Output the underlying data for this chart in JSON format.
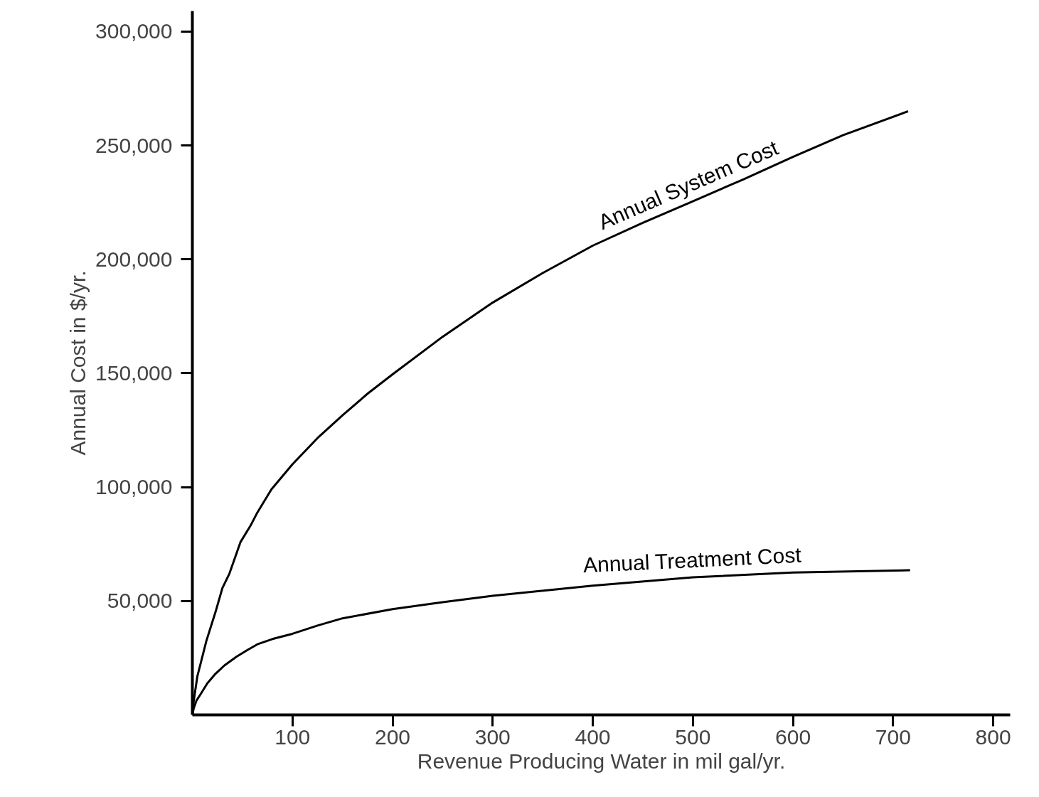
{
  "chart_data": {
    "type": "line",
    "xlabel": "Revenue Producing Water in mil gal/yr.",
    "ylabel": "Annual Cost in $/yr.",
    "xlim": [
      0,
      817
    ],
    "ylim": [
      0,
      309000
    ],
    "xticks": [
      100,
      200,
      300,
      400,
      500,
      600,
      700,
      800
    ],
    "yticks": [
      {
        "value": 50000,
        "label": "50,000"
      },
      {
        "value": 100000,
        "label": "100,000"
      },
      {
        "value": 150000,
        "label": "150,000"
      },
      {
        "value": 200000,
        "label": "200,000"
      },
      {
        "value": 250000,
        "label": "250,000"
      },
      {
        "value": 300000,
        "label": "300,000"
      }
    ],
    "grid": false,
    "legend": false,
    "marker": "none",
    "line_style": "solid",
    "series": [
      {
        "name": "Annual System Cost",
        "color": "#000000",
        "x": [
          0,
          1.4,
          5,
          8.5,
          14,
          23,
          30,
          37,
          48,
          58,
          65,
          79,
          100,
          125,
          150,
          175,
          200,
          250,
          300,
          350,
          400,
          450,
          500,
          550,
          600,
          650,
          715
        ],
        "values": [
          0,
          6200,
          17000,
          23000,
          32500,
          45000,
          55700,
          62000,
          75800,
          83000,
          88900,
          99000,
          110000,
          121500,
          131500,
          141000,
          149500,
          166000,
          181000,
          194000,
          206000,
          216000,
          225500,
          235000,
          245000,
          254500,
          265000
        ]
      },
      {
        "name": "Annual Treatment Cost",
        "color": "#000000",
        "x": [
          0,
          1.4,
          4,
          8.5,
          15,
          23,
          32,
          44,
          55,
          65,
          80,
          100,
          125,
          150,
          200,
          250,
          300,
          400,
          500,
          600,
          717
        ],
        "values": [
          0,
          3000,
          6200,
          9300,
          13900,
          18000,
          21700,
          25500,
          28500,
          31000,
          33300,
          35600,
          39200,
          42400,
          46400,
          49500,
          52300,
          56700,
          60400,
          62500,
          63500
        ]
      }
    ]
  }
}
